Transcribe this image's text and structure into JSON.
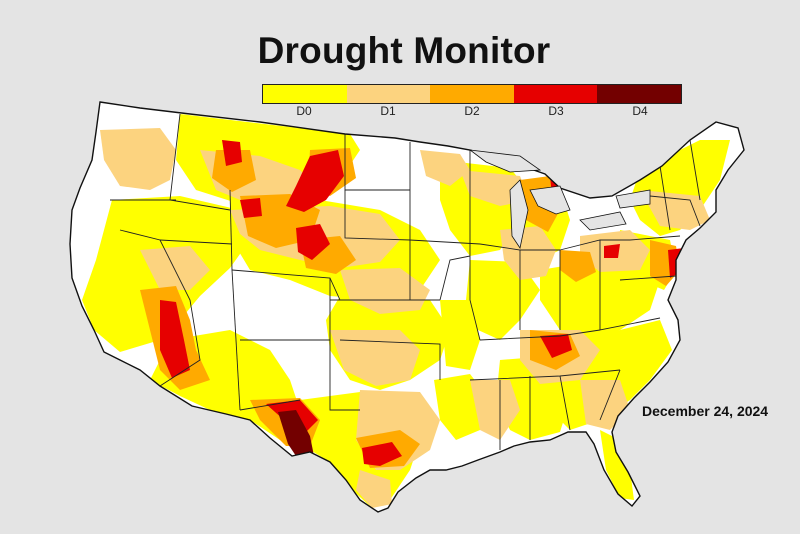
{
  "title": "Drought Monitor",
  "date": "December 24, 2024",
  "legend": [
    {
      "label": "D0",
      "color": "#ffff00"
    },
    {
      "label": "D1",
      "color": "#fcd37f"
    },
    {
      "label": "D2",
      "color": "#ffaa00"
    },
    {
      "label": "D3",
      "color": "#e60000"
    },
    {
      "label": "D4",
      "color": "#730000"
    }
  ]
}
